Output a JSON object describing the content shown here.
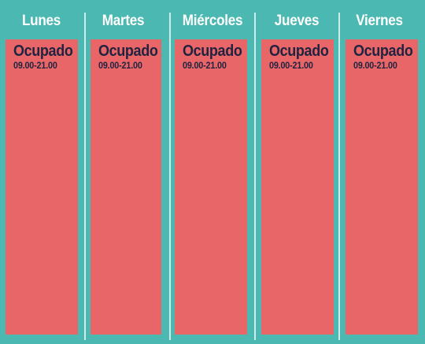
{
  "schedule": {
    "days": [
      {
        "name": "Lunes",
        "status": "Ocupado",
        "hours": "09.00-21.00"
      },
      {
        "name": "Martes",
        "status": "Ocupado",
        "hours": "09.00-21.00"
      },
      {
        "name": "Miércoles",
        "status": "Ocupado",
        "hours": "09.00-21.00"
      },
      {
        "name": "Jueves",
        "status": "Ocupado",
        "hours": "09.00-21.00"
      },
      {
        "name": "Viernes",
        "status": "Ocupado",
        "hours": "09.00-21.00"
      }
    ]
  },
  "colors": {
    "background": "#4cb8b2",
    "occupied": "#e86668",
    "divider": "#cfeceb",
    "header_text": "#ffffff",
    "block_text": "#1f2340"
  }
}
